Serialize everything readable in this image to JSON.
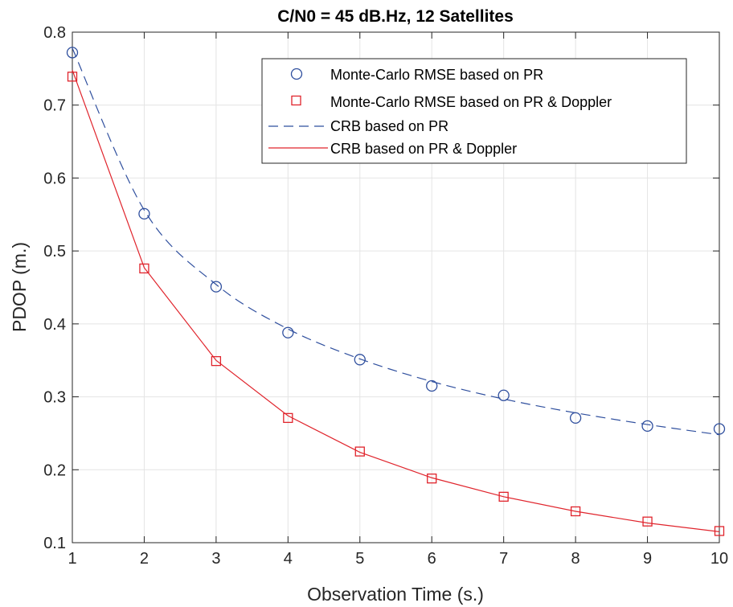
{
  "chart_data": {
    "type": "line",
    "title": "C/N0 = 45 dB.Hz, 12 Satellites",
    "xlabel": "Observation Time (s.)",
    "ylabel": "PDOP (m.)",
    "xlim": [
      1,
      10
    ],
    "ylim": [
      0.1,
      0.8
    ],
    "xticks": [
      1,
      2,
      3,
      4,
      5,
      6,
      7,
      8,
      9,
      10
    ],
    "yticks": [
      0.1,
      0.2,
      0.3,
      0.4,
      0.5,
      0.6,
      0.7,
      0.8
    ],
    "xtick_labels": [
      "1",
      "2",
      "3",
      "4",
      "5",
      "6",
      "7",
      "8",
      "9",
      "10"
    ],
    "ytick_labels": [
      "0.1",
      "0.2",
      "0.3",
      "0.4",
      "0.5",
      "0.6",
      "0.7",
      "0.8"
    ],
    "grid": true,
    "legend_position": "top-right",
    "x": [
      1,
      2,
      3,
      4,
      5,
      6,
      7,
      8,
      9,
      10
    ],
    "series": [
      {
        "name": "Monte-Carlo RMSE based on PR",
        "style": "markers",
        "marker": "circle",
        "color": "#2f4f9e",
        "values": [
          0.772,
          0.551,
          0.451,
          0.388,
          0.351,
          0.315,
          0.302,
          0.271,
          0.26,
          0.256
        ]
      },
      {
        "name": "Monte-Carlo RMSE based on PR & Doppler",
        "style": "markers",
        "marker": "square",
        "color": "#e0242c",
        "values": [
          0.739,
          0.476,
          0.349,
          0.271,
          0.225,
          0.188,
          0.163,
          0.143,
          0.129,
          0.116
        ]
      },
      {
        "name": "CRB based on PR",
        "style": "dashed-line",
        "color": "#2f4f9e",
        "values": [
          0.778,
          0.556,
          0.454,
          0.393,
          0.352,
          0.321,
          0.297,
          0.278,
          0.262,
          0.248
        ]
      },
      {
        "name": "CRB based on PR & Doppler",
        "style": "solid-line",
        "color": "#e0242c",
        "values": [
          0.748,
          0.477,
          0.35,
          0.274,
          0.224,
          0.189,
          0.163,
          0.143,
          0.127,
          0.115
        ]
      }
    ]
  }
}
